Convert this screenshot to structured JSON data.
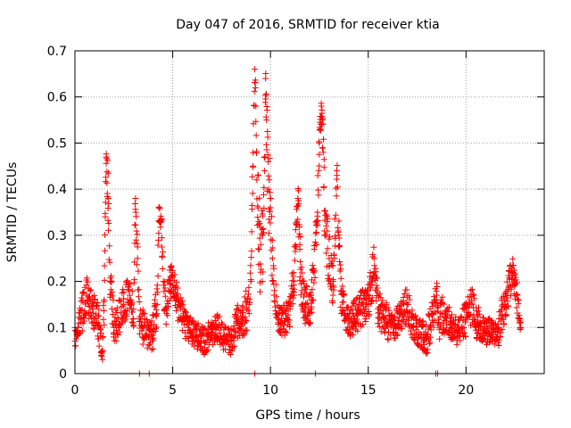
{
  "chart_data": {
    "type": "scatter",
    "title": "Day 047 of 2016, SRMTID for receiver ktia",
    "xlabel": "GPS time / hours",
    "ylabel": "SRMTID / TECUs",
    "xlim": [
      0,
      24
    ],
    "ylim": [
      0,
      0.7
    ],
    "xticks": [
      0,
      5,
      10,
      15,
      20
    ],
    "xtick_labels": [
      "0",
      "5",
      "10",
      "15",
      "20"
    ],
    "yticks": [
      0,
      0.1,
      0.2,
      0.3,
      0.4,
      0.5,
      0.6,
      0.7
    ],
    "ytick_labels": [
      "0",
      "0.1",
      "0.2",
      "0.3",
      "0.4",
      "0.5",
      "0.6",
      "0.7"
    ],
    "grid": true,
    "marker": "+",
    "series": [
      {
        "name": "SRMTID",
        "color": "#ff0000",
        "x": [
          0.0,
          0.3,
          0.6,
          0.9,
          1.2,
          1.4,
          1.5,
          1.55,
          1.6,
          1.7,
          1.8,
          2.0,
          2.2,
          2.5,
          2.8,
          3.0,
          3.1,
          3.2,
          3.3,
          3.5,
          3.8,
          4.0,
          4.2,
          4.3,
          4.4,
          4.6,
          4.8,
          5.0,
          5.2,
          5.5,
          5.8,
          6.0,
          6.3,
          6.6,
          7.0,
          7.3,
          7.6,
          8.0,
          8.3,
          8.6,
          8.9,
          9.0,
          9.1,
          9.2,
          9.25,
          9.3,
          9.4,
          9.5,
          9.6,
          9.7,
          9.75,
          9.8,
          9.9,
          10.0,
          10.1,
          10.2,
          10.4,
          10.6,
          10.8,
          11.0,
          11.2,
          11.4,
          11.5,
          11.6,
          11.8,
          12.0,
          12.2,
          12.4,
          12.5,
          12.6,
          12.7,
          12.8,
          13.0,
          13.2,
          13.4,
          13.5,
          13.6,
          13.8,
          14.0,
          14.3,
          14.6,
          15.0,
          15.2,
          15.3,
          15.5,
          15.8,
          16.0,
          16.3,
          16.6,
          17.0,
          17.3,
          17.6,
          18.0,
          18.3,
          18.5,
          18.6,
          18.8,
          19.0,
          19.3,
          19.6,
          20.0,
          20.3,
          20.6,
          21.0,
          21.3,
          21.6,
          21.8,
          22.0,
          22.2,
          22.4,
          22.6,
          22.8
        ],
        "y": [
          0.07,
          0.12,
          0.17,
          0.14,
          0.11,
          0.05,
          0.16,
          0.34,
          0.47,
          0.38,
          0.2,
          0.1,
          0.12,
          0.15,
          0.17,
          0.14,
          0.38,
          0.25,
          0.12,
          0.1,
          0.08,
          0.09,
          0.15,
          0.36,
          0.33,
          0.14,
          0.18,
          0.21,
          0.16,
          0.12,
          0.1,
          0.09,
          0.08,
          0.07,
          0.09,
          0.1,
          0.08,
          0.07,
          0.11,
          0.12,
          0.15,
          0.2,
          0.45,
          0.66,
          0.58,
          0.42,
          0.33,
          0.22,
          0.3,
          0.47,
          0.64,
          0.55,
          0.4,
          0.36,
          0.25,
          0.18,
          0.13,
          0.11,
          0.12,
          0.14,
          0.2,
          0.38,
          0.28,
          0.18,
          0.15,
          0.13,
          0.22,
          0.35,
          0.5,
          0.58,
          0.48,
          0.3,
          0.25,
          0.2,
          0.43,
          0.3,
          0.18,
          0.13,
          0.11,
          0.12,
          0.14,
          0.15,
          0.2,
          0.25,
          0.14,
          0.12,
          0.11,
          0.1,
          0.13,
          0.15,
          0.1,
          0.09,
          0.08,
          0.13,
          0.17,
          0.11,
          0.13,
          0.12,
          0.1,
          0.09,
          0.12,
          0.15,
          0.11,
          0.09,
          0.1,
          0.08,
          0.12,
          0.15,
          0.19,
          0.22,
          0.17,
          0.1
        ],
        "spread": [
          0.03,
          0.04,
          0.04,
          0.04,
          0.04,
          0.04,
          0.05,
          0.06,
          0.02,
          0.08,
          0.05,
          0.04,
          0.04,
          0.04,
          0.04,
          0.05,
          0.05,
          0.06,
          0.04,
          0.04,
          0.03,
          0.04,
          0.05,
          0.03,
          0.04,
          0.05,
          0.04,
          0.04,
          0.04,
          0.04,
          0.03,
          0.03,
          0.03,
          0.03,
          0.03,
          0.03,
          0.03,
          0.03,
          0.04,
          0.04,
          0.05,
          0.05,
          0.05,
          0.03,
          0.05,
          0.08,
          0.1,
          0.08,
          0.1,
          0.1,
          0.03,
          0.08,
          0.1,
          0.08,
          0.07,
          0.04,
          0.04,
          0.03,
          0.04,
          0.04,
          0.05,
          0.05,
          0.08,
          0.06,
          0.05,
          0.04,
          0.06,
          0.07,
          0.06,
          0.02,
          0.07,
          0.08,
          0.06,
          0.06,
          0.04,
          0.08,
          0.05,
          0.04,
          0.03,
          0.04,
          0.04,
          0.04,
          0.05,
          0.03,
          0.04,
          0.04,
          0.04,
          0.03,
          0.04,
          0.04,
          0.03,
          0.03,
          0.04,
          0.04,
          0.03,
          0.04,
          0.04,
          0.04,
          0.03,
          0.03,
          0.04,
          0.04,
          0.04,
          0.03,
          0.03,
          0.03,
          0.04,
          0.04,
          0.04,
          0.03,
          0.04,
          0.03
        ],
        "zero_points_x": [
          3.3,
          3.8,
          9.2,
          12.3,
          18.45,
          18.55
        ]
      }
    ]
  }
}
